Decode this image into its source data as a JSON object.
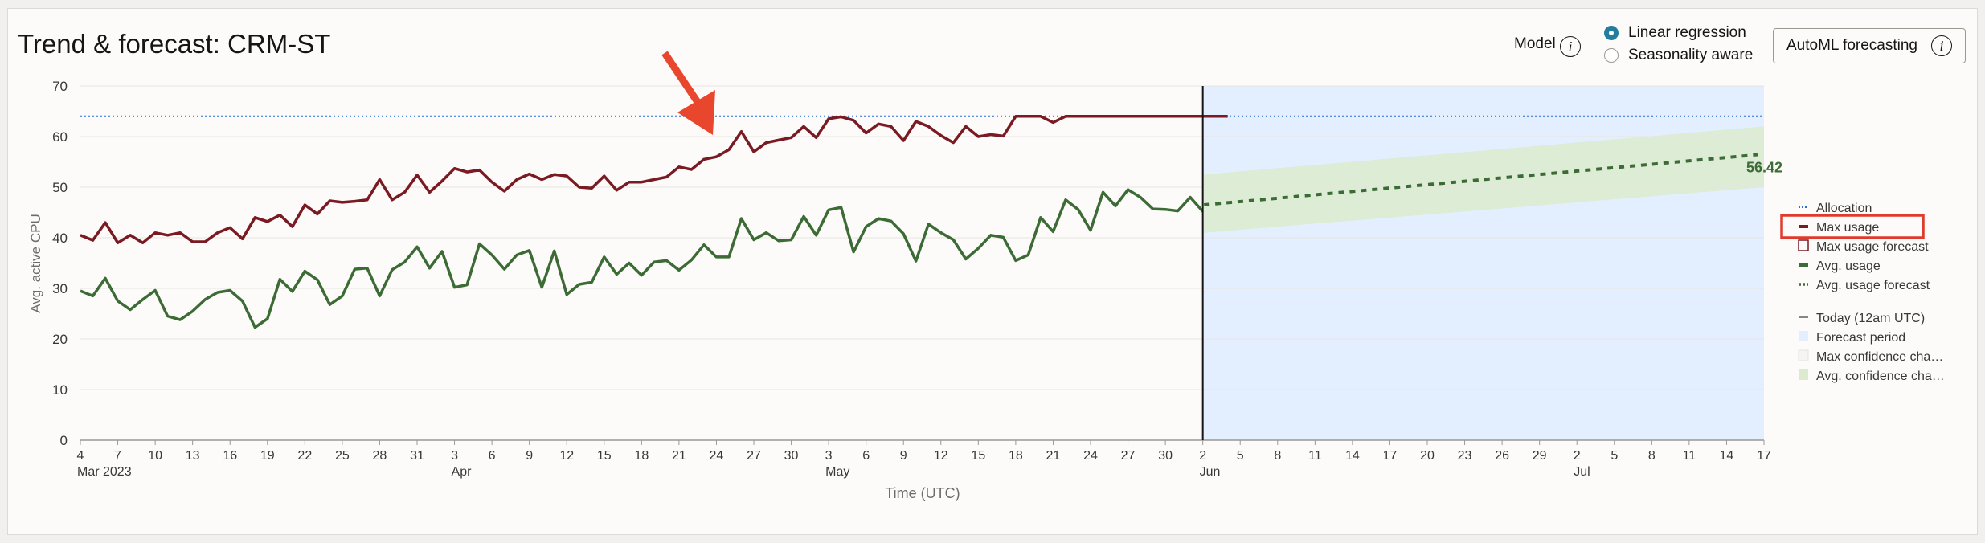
{
  "header": {
    "title": "Trend & forecast: CRM-ST",
    "model_label": "Model",
    "model_options": [
      {
        "label": "Linear regression",
        "selected": true
      },
      {
        "label": "Seasonality aware",
        "selected": false
      }
    ],
    "automl_button": "AutoML forecasting",
    "info_glyph": "i"
  },
  "colors": {
    "max_usage": "#7a1a23",
    "avg_usage": "#3d6b35",
    "allocation": "#2a6fcf",
    "forecast_period": "#e3efff",
    "avg_confidence": "#dcebd0",
    "highlight_box": "#e03a2c",
    "arrow": "#e8472e"
  },
  "chart_data": {
    "type": "line",
    "ylabel": "Avg. active CPU",
    "xlabel": "Time (UTC)",
    "ylim": [
      0,
      70
    ],
    "yticks": [
      0,
      10,
      20,
      30,
      40,
      50,
      60,
      70
    ],
    "x_start": "2023-03-04",
    "x_end": "2023-07-17",
    "today": "2023-06-02",
    "xticks": [
      {
        "date": "2023-03-04",
        "day": "4",
        "month": "Mar 2023"
      },
      {
        "date": "2023-03-07",
        "day": "7"
      },
      {
        "date": "2023-03-10",
        "day": "10"
      },
      {
        "date": "2023-03-13",
        "day": "13"
      },
      {
        "date": "2023-03-16",
        "day": "16"
      },
      {
        "date": "2023-03-19",
        "day": "19"
      },
      {
        "date": "2023-03-22",
        "day": "22"
      },
      {
        "date": "2023-03-25",
        "day": "25"
      },
      {
        "date": "2023-03-28",
        "day": "28"
      },
      {
        "date": "2023-03-31",
        "day": "31"
      },
      {
        "date": "2023-04-03",
        "day": "3",
        "month": "Apr"
      },
      {
        "date": "2023-04-06",
        "day": "6"
      },
      {
        "date": "2023-04-09",
        "day": "9"
      },
      {
        "date": "2023-04-12",
        "day": "12"
      },
      {
        "date": "2023-04-15",
        "day": "15"
      },
      {
        "date": "2023-04-18",
        "day": "18"
      },
      {
        "date": "2023-04-21",
        "day": "21"
      },
      {
        "date": "2023-04-24",
        "day": "24"
      },
      {
        "date": "2023-04-27",
        "day": "27"
      },
      {
        "date": "2023-04-30",
        "day": "30"
      },
      {
        "date": "2023-05-03",
        "day": "3",
        "month": "May"
      },
      {
        "date": "2023-05-06",
        "day": "6"
      },
      {
        "date": "2023-05-09",
        "day": "9"
      },
      {
        "date": "2023-05-12",
        "day": "12"
      },
      {
        "date": "2023-05-15",
        "day": "15"
      },
      {
        "date": "2023-05-18",
        "day": "18"
      },
      {
        "date": "2023-05-21",
        "day": "21"
      },
      {
        "date": "2023-05-24",
        "day": "24"
      },
      {
        "date": "2023-05-27",
        "day": "27"
      },
      {
        "date": "2023-05-30",
        "day": "30"
      },
      {
        "date": "2023-06-02",
        "day": "2",
        "month": "Jun"
      },
      {
        "date": "2023-06-05",
        "day": "5"
      },
      {
        "date": "2023-06-08",
        "day": "8"
      },
      {
        "date": "2023-06-11",
        "day": "11"
      },
      {
        "date": "2023-06-14",
        "day": "14"
      },
      {
        "date": "2023-06-17",
        "day": "17"
      },
      {
        "date": "2023-06-20",
        "day": "20"
      },
      {
        "date": "2023-06-23",
        "day": "23"
      },
      {
        "date": "2023-06-26",
        "day": "26"
      },
      {
        "date": "2023-06-29",
        "day": "29"
      },
      {
        "date": "2023-07-02",
        "day": "2",
        "month": "Jul"
      },
      {
        "date": "2023-07-05",
        "day": "5"
      },
      {
        "date": "2023-07-08",
        "day": "8"
      },
      {
        "date": "2023-07-11",
        "day": "11"
      },
      {
        "date": "2023-07-14",
        "day": "14"
      },
      {
        "date": "2023-07-17",
        "day": "17"
      }
    ],
    "allocation": 64,
    "max_usage": [
      40.5,
      39.5,
      43,
      39,
      40.5,
      39,
      41,
      40.5,
      41,
      39.2,
      39.2,
      41,
      42,
      39.8,
      44,
      43.2,
      44.5,
      42.2,
      46.5,
      44.7,
      47.3,
      47,
      47.2,
      47.5,
      51.5,
      47.5,
      49,
      52.4,
      49,
      51.2,
      53.7,
      53,
      53.4,
      51,
      49.2,
      51.5,
      52.6,
      51.5,
      52.5,
      52.2,
      50,
      49.8,
      52.2,
      49.4,
      51,
      51,
      51.5,
      52,
      54,
      53.5,
      55.5,
      56,
      57.4,
      61,
      57,
      58.8,
      59.3,
      59.8,
      62,
      59.8,
      63.5,
      63.9,
      63.2,
      60.7,
      62.5,
      62,
      59.2,
      63,
      62,
      60.2,
      58.8,
      62,
      60,
      60.4,
      60.1,
      64,
      64,
      64,
      62.8,
      64,
      64,
      64,
      64,
      64,
      64,
      64,
      64,
      64,
      64,
      64,
      64,
      64,
      64
    ],
    "avg_usage": [
      29.5,
      28.5,
      32,
      27.5,
      25.8,
      27.8,
      29.6,
      24.5,
      23.8,
      25.5,
      27.8,
      29.2,
      29.6,
      27.5,
      22.3,
      24,
      31.8,
      29.4,
      33.4,
      31.7,
      26.8,
      28.5,
      33.8,
      34,
      28.5,
      33.7,
      35.2,
      38.2,
      34,
      37.3,
      30.2,
      30.7,
      38.8,
      36.6,
      33.8,
      36.6,
      37.5,
      30.2,
      37.4,
      28.8,
      30.8,
      31.2,
      36.2,
      32.8,
      35,
      32.6,
      35.2,
      35.5,
      33.6,
      35.6,
      38.6,
      36.2,
      36.2,
      43.8,
      39.6,
      41,
      39.4,
      39.6,
      44.2,
      40.5,
      45.5,
      46,
      37.2,
      42.2,
      43.8,
      43.3,
      40.8,
      35.4,
      42.7,
      41,
      39.6,
      35.8,
      37.9,
      40.5,
      40.1,
      35.5,
      36.6,
      44,
      41.2,
      47.5,
      45.6,
      41.5,
      49,
      46.3,
      49.5,
      48,
      45.7,
      45.6,
      45.3,
      48,
      45.2
    ],
    "forecast": {
      "start": "2023-06-03",
      "end": "2023-07-17",
      "avg_start": 46.5,
      "avg_end": 56.42,
      "avg_band_lower_start": 41,
      "avg_band_upper_start": 52.5,
      "avg_band_lower_end": 50,
      "avg_band_upper_end": 62,
      "end_label": "56.42"
    },
    "legend": [
      {
        "key": "allocation",
        "label": "Allocation",
        "style": "dotted"
      },
      {
        "key": "max_usage",
        "label": "Max usage",
        "style": "line",
        "highlighted": true
      },
      {
        "key": "max_forecast",
        "label": "Max usage forecast",
        "style": "box"
      },
      {
        "key": "avg_usage",
        "label": "Avg. usage",
        "style": "line"
      },
      {
        "key": "avg_forecast",
        "label": "Avg. usage forecast",
        "style": "dashed"
      },
      {
        "key": "today",
        "label": "Today (12am UTC)",
        "style": "thin"
      },
      {
        "key": "forecast_period",
        "label": "Forecast period",
        "style": "fill-blue"
      },
      {
        "key": "max_confidence",
        "label": "Max confidence cha…",
        "style": "fill-empty"
      },
      {
        "key": "avg_confidence",
        "label": "Avg. confidence cha…",
        "style": "fill-green"
      }
    ]
  }
}
